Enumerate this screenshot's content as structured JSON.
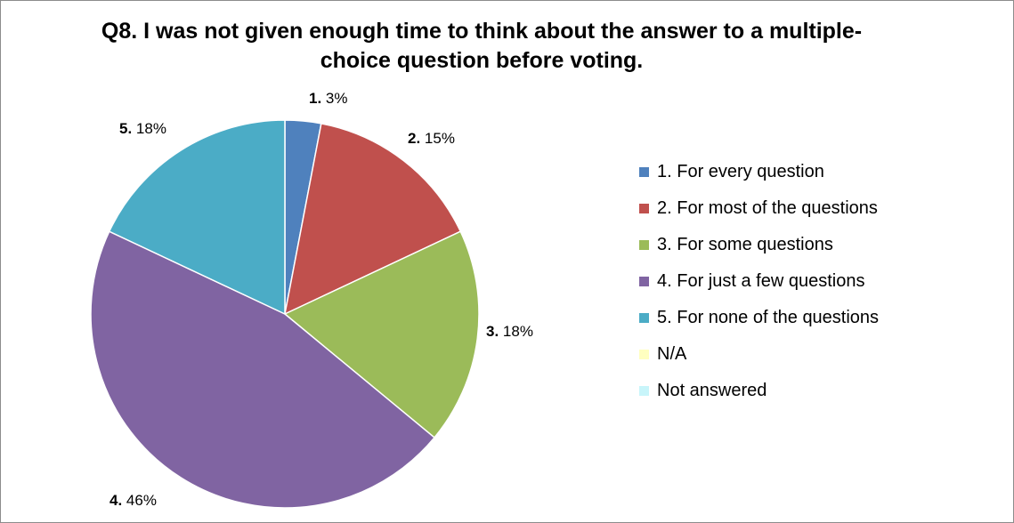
{
  "chart_data": {
    "type": "pie",
    "title": "Q8. I was not given enough time to think about the answer to a multiple-choice question before voting.",
    "slices": [
      {
        "num": "1.",
        "pct_label": "3%",
        "value": 3,
        "color": "#4f81bd"
      },
      {
        "num": "2.",
        "pct_label": "15%",
        "value": 15,
        "color": "#c0504d"
      },
      {
        "num": "3.",
        "pct_label": "18%",
        "value": 18,
        "color": "#9bbb59"
      },
      {
        "num": "4.",
        "pct_label": "46%",
        "value": 46,
        "color": "#8064a2"
      },
      {
        "num": "5.",
        "pct_label": "18%",
        "value": 18,
        "color": "#4bacc6"
      }
    ],
    "legend": [
      {
        "label": "1. For every question",
        "color": "#4f81bd"
      },
      {
        "label": "2. For most of the questions",
        "color": "#c0504d"
      },
      {
        "label": "3. For some questions",
        "color": "#9bbb59"
      },
      {
        "label": "4. For just a few questions",
        "color": "#8064a2"
      },
      {
        "label": "5. For none of the questions",
        "color": "#4bacc6"
      },
      {
        "label": "N/A",
        "color": "#ffffc0"
      },
      {
        "label": "Not answered",
        "color": "#c8f5fa"
      }
    ],
    "legend_position": "right"
  }
}
